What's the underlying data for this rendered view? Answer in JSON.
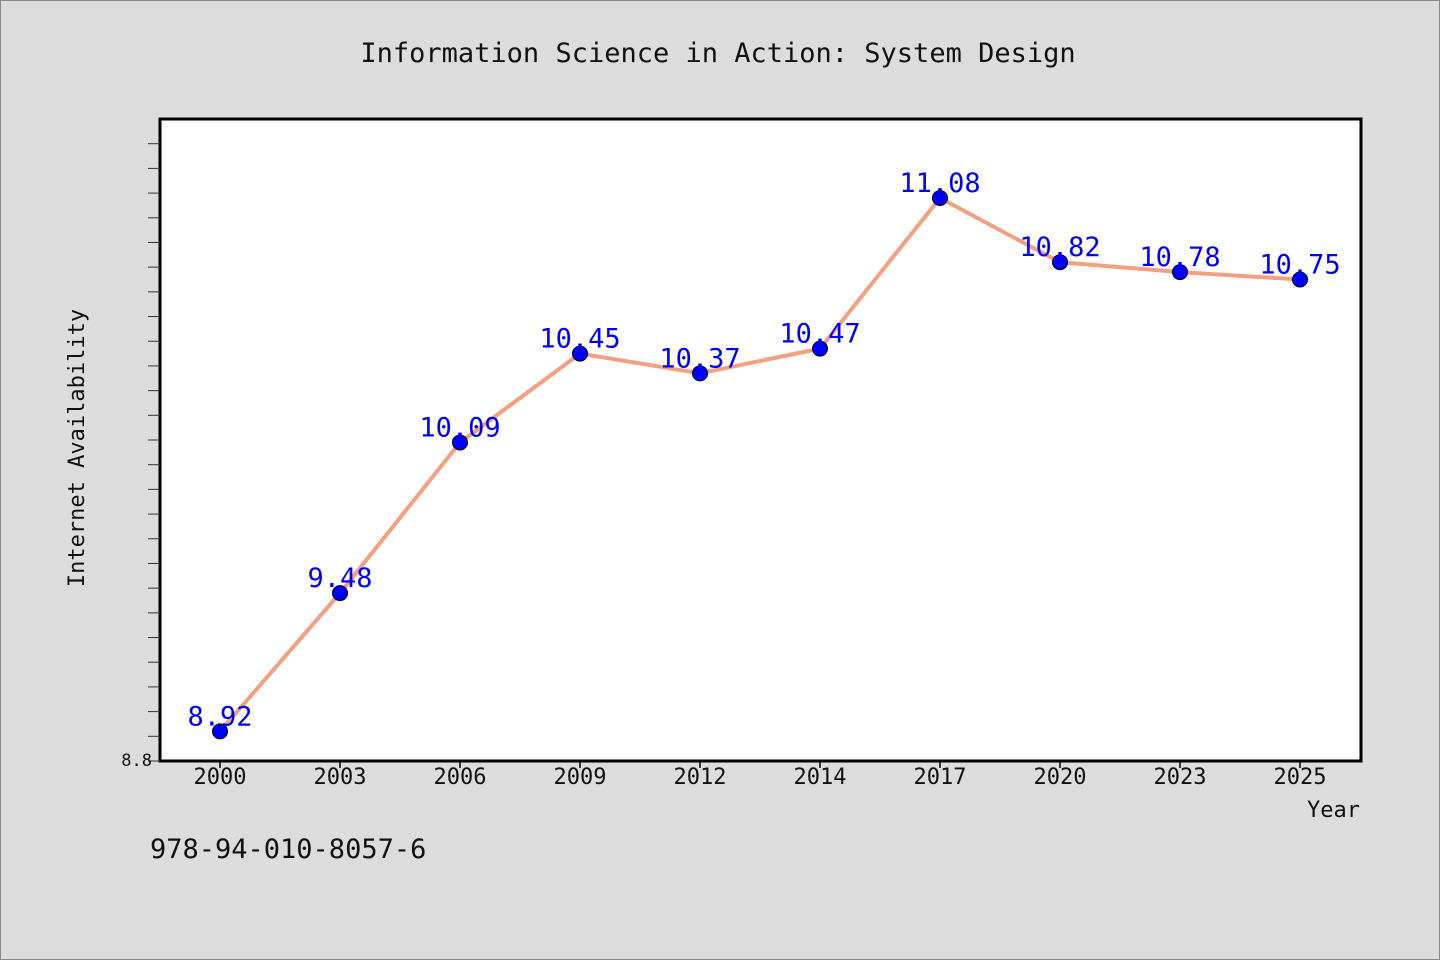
{
  "chart_data": {
    "type": "line",
    "title": "Information Science in Action: System Design",
    "xlabel": "Year",
    "ylabel": "Internet Availability",
    "categories": [
      "2000",
      "2003",
      "2006",
      "2009",
      "2012",
      "2014",
      "2017",
      "2020",
      "2023",
      "2025"
    ],
    "series": [
      {
        "values": [
          8.92,
          9.48,
          10.09,
          10.45,
          10.37,
          10.47,
          11.08,
          10.82,
          10.78,
          10.75
        ]
      }
    ],
    "data_labels": [
      "8.92",
      "9.48",
      "10.09",
      "10.45",
      "10.37",
      "10.47",
      "11.08",
      "10.82",
      "10.78",
      "10.75"
    ],
    "ylim": [
      8.8,
      11.4
    ],
    "y_tick_labels": [
      "8.8"
    ],
    "grid": false,
    "legend": "none",
    "colors": {
      "line": "#f4a080",
      "marker": "#0000ff",
      "label": "#0000ff",
      "background": "#dcdcdc",
      "plot_bg": "#ffffff"
    }
  },
  "footer": {
    "isbn": "978-94-010-8057-6"
  }
}
